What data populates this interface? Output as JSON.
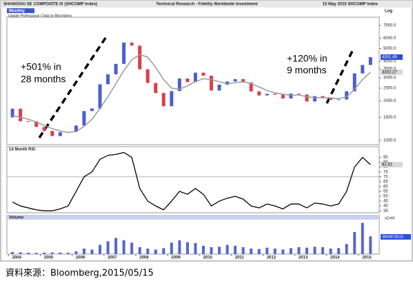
{
  "header": {
    "left": "SHANGHAI SE COMPOSITE IX (SHCOMP Index)",
    "center": "Technical Research - Fidelity Worldwide Investment",
    "right": "15 May 2015 SHCOMP Index",
    "scale": "Log",
    "tab": "Monthly",
    "source": "Update Professional | Data by Bloomberg"
  },
  "caption": "資料來源：Bloomberg,2015/05/15",
  "chart_data": [
    {
      "type": "ohlc",
      "x": [
        2004.125,
        2004.375,
        2004.625,
        2004.875,
        2005.125,
        2005.375,
        2005.625,
        2005.875,
        2006.125,
        2006.375,
        2006.625,
        2006.875,
        2007.125,
        2007.375,
        2007.625,
        2007.875,
        2008.125,
        2008.375,
        2008.625,
        2008.875,
        2009.125,
        2009.375,
        2009.625,
        2009.875,
        2010.125,
        2010.375,
        2010.625,
        2010.875,
        2011.125,
        2011.375,
        2011.625,
        2011.875,
        2012.125,
        2012.375,
        2012.625,
        2012.875,
        2013.125,
        2013.375,
        2013.625,
        2013.875,
        2014.125,
        2014.375,
        2014.625,
        2014.875,
        2015.125,
        2015.375
      ],
      "open": [
        1497,
        1742,
        1400,
        1396,
        1266,
        1181,
        1080,
        1155,
        1161,
        1298,
        1672,
        1752,
        2675,
        3183,
        3820,
        5552,
        5261,
        3472,
        2736,
        2293,
        1820,
        2373,
        2959,
        2779,
        3277,
        3109,
        2398,
        2655,
        2808,
        2928,
        2762,
        2359,
        2199,
        2262,
        2225,
        2086,
        2269,
        2236,
        1979,
        2175,
        2116,
        2033,
        2048,
        2364,
        3234,
        3748
      ],
      "close": [
        1742,
        1400,
        1396,
        1266,
        1181,
        1080,
        1155,
        1161,
        1298,
        1672,
        1752,
        2675,
        3183,
        3820,
        5552,
        5261,
        3472,
        2736,
        2293,
        1820,
        2373,
        2959,
        2779,
        3277,
        3109,
        2398,
        2655,
        2808,
        2928,
        2762,
        2359,
        2199,
        2262,
        2225,
        2086,
        2269,
        2236,
        1979,
        2175,
        2116,
        2033,
        2048,
        2364,
        3234,
        3748,
        4301.49
      ],
      "ma": [
        1550,
        1500,
        1450,
        1380,
        1300,
        1230,
        1180,
        1150,
        1170,
        1280,
        1450,
        1750,
        2150,
        2700,
        3400,
        4100,
        4500,
        4300,
        3600,
        2900,
        2500,
        2450,
        2600,
        2800,
        2950,
        2900,
        2800,
        2700,
        2750,
        2800,
        2700,
        2550,
        2400,
        2300,
        2250,
        2200,
        2220,
        2150,
        2120,
        2110,
        2100,
        2080,
        2150,
        2450,
        2900,
        3302.27
      ],
      "up_color": "#4a5fd0",
      "down_color": "#d8404a",
      "ma_color": "#999999",
      "log_scale": true,
      "xlim": [
        2003.95,
        2015.65
      ],
      "ylim": [
        930,
        8650
      ],
      "yticks": [
        {
          "value": 7500,
          "label": "7500.0"
        },
        {
          "value": 6000,
          "label": "6000.0"
        },
        {
          "value": 5000,
          "label": "5000.0"
        },
        {
          "value": 4000,
          "label": "4000.0"
        },
        {
          "value": 3500,
          "label": "3500.0"
        },
        {
          "value": 3000,
          "label": "3000.0"
        },
        {
          "value": 2500,
          "label": "2500.0"
        },
        {
          "value": 2000,
          "label": "2000.0"
        },
        {
          "value": 1500,
          "label": "1500.0"
        },
        {
          "value": 1000,
          "label": "1000.0"
        }
      ],
      "annotations": [
        {
          "lines": [
            "+501% in",
            "28 months"
          ]
        },
        {
          "lines": [
            "+120% in",
            "9 months"
          ]
        }
      ]
    },
    {
      "type": "line",
      "title": "14 Month RSI",
      "x": [
        2004.125,
        2004.375,
        2004.625,
        2004.875,
        2005.125,
        2005.375,
        2005.625,
        2005.875,
        2006.125,
        2006.375,
        2006.625,
        2006.875,
        2007.125,
        2007.375,
        2007.625,
        2007.875,
        2008.125,
        2008.375,
        2008.625,
        2008.875,
        2009.125,
        2009.375,
        2009.625,
        2009.875,
        2010.125,
        2010.375,
        2010.625,
        2010.875,
        2011.125,
        2011.375,
        2011.625,
        2011.875,
        2012.125,
        2012.375,
        2012.625,
        2012.875,
        2013.125,
        2013.375,
        2013.625,
        2013.875,
        2014.125,
        2014.375,
        2014.625,
        2014.875,
        2015.125,
        2015.375
      ],
      "values": [
        44,
        40,
        38,
        36,
        35,
        35,
        37,
        40,
        55,
        70,
        75,
        88,
        92,
        93,
        95,
        90,
        58,
        45,
        40,
        36,
        45,
        55,
        52,
        58,
        52,
        40,
        45,
        48,
        50,
        47,
        40,
        38,
        42,
        40,
        37,
        42,
        42,
        38,
        43,
        42,
        40,
        42,
        55,
        80,
        90,
        82.52
      ],
      "color": "#000000",
      "reference": 70,
      "xlim": [
        2003.95,
        2015.65
      ],
      "ylim": [
        33,
        101
      ],
      "yticks": [
        90,
        85,
        80,
        75,
        70,
        65,
        60,
        55,
        50,
        45,
        40,
        35
      ]
    },
    {
      "type": "bar",
      "title": "Volume",
      "unit": "x1mil",
      "x": [
        2004.125,
        2004.375,
        2004.625,
        2004.875,
        2005.125,
        2005.375,
        2005.625,
        2005.875,
        2006.125,
        2006.375,
        2006.625,
        2006.875,
        2007.125,
        2007.375,
        2007.625,
        2007.875,
        2008.125,
        2008.375,
        2008.625,
        2008.875,
        2009.125,
        2009.375,
        2009.625,
        2009.875,
        2010.125,
        2010.375,
        2010.625,
        2010.875,
        2011.125,
        2011.375,
        2011.625,
        2011.875,
        2012.125,
        2012.375,
        2012.625,
        2012.875,
        2013.125,
        2013.375,
        2013.625,
        2013.875,
        2014.125,
        2014.375,
        2014.625,
        2014.875,
        2015.125,
        2015.375
      ],
      "values": [
        450000000,
        380000000,
        300000000,
        280000000,
        300000000,
        350000000,
        320000000,
        300000000,
        600000000,
        1200000000,
        1000000000,
        2000000000,
        2800000000,
        3500000000,
        3000000000,
        2500000000,
        1500000000,
        1200000000,
        1000000000,
        1300000000,
        2500000000,
        3000000000,
        2600000000,
        2400000000,
        1800000000,
        1500000000,
        1600000000,
        2000000000,
        1800000000,
        1500000000,
        1200000000,
        1100000000,
        1400000000,
        1200000000,
        1000000000,
        1300000000,
        1500000000,
        1400000000,
        1600000000,
        1500000000,
        1200000000,
        1300000000,
        2200000000,
        4800000000,
        6800000000,
        3859873519
      ],
      "color": "#5566cc",
      "xlim": [
        2003.95,
        2015.65
      ],
      "ylim": [
        0,
        7500000000
      ],
      "xticks": [
        2004,
        2005,
        2006,
        2007,
        2008,
        2009,
        2010,
        2011,
        2012,
        2013,
        2014,
        2015
      ]
    }
  ]
}
